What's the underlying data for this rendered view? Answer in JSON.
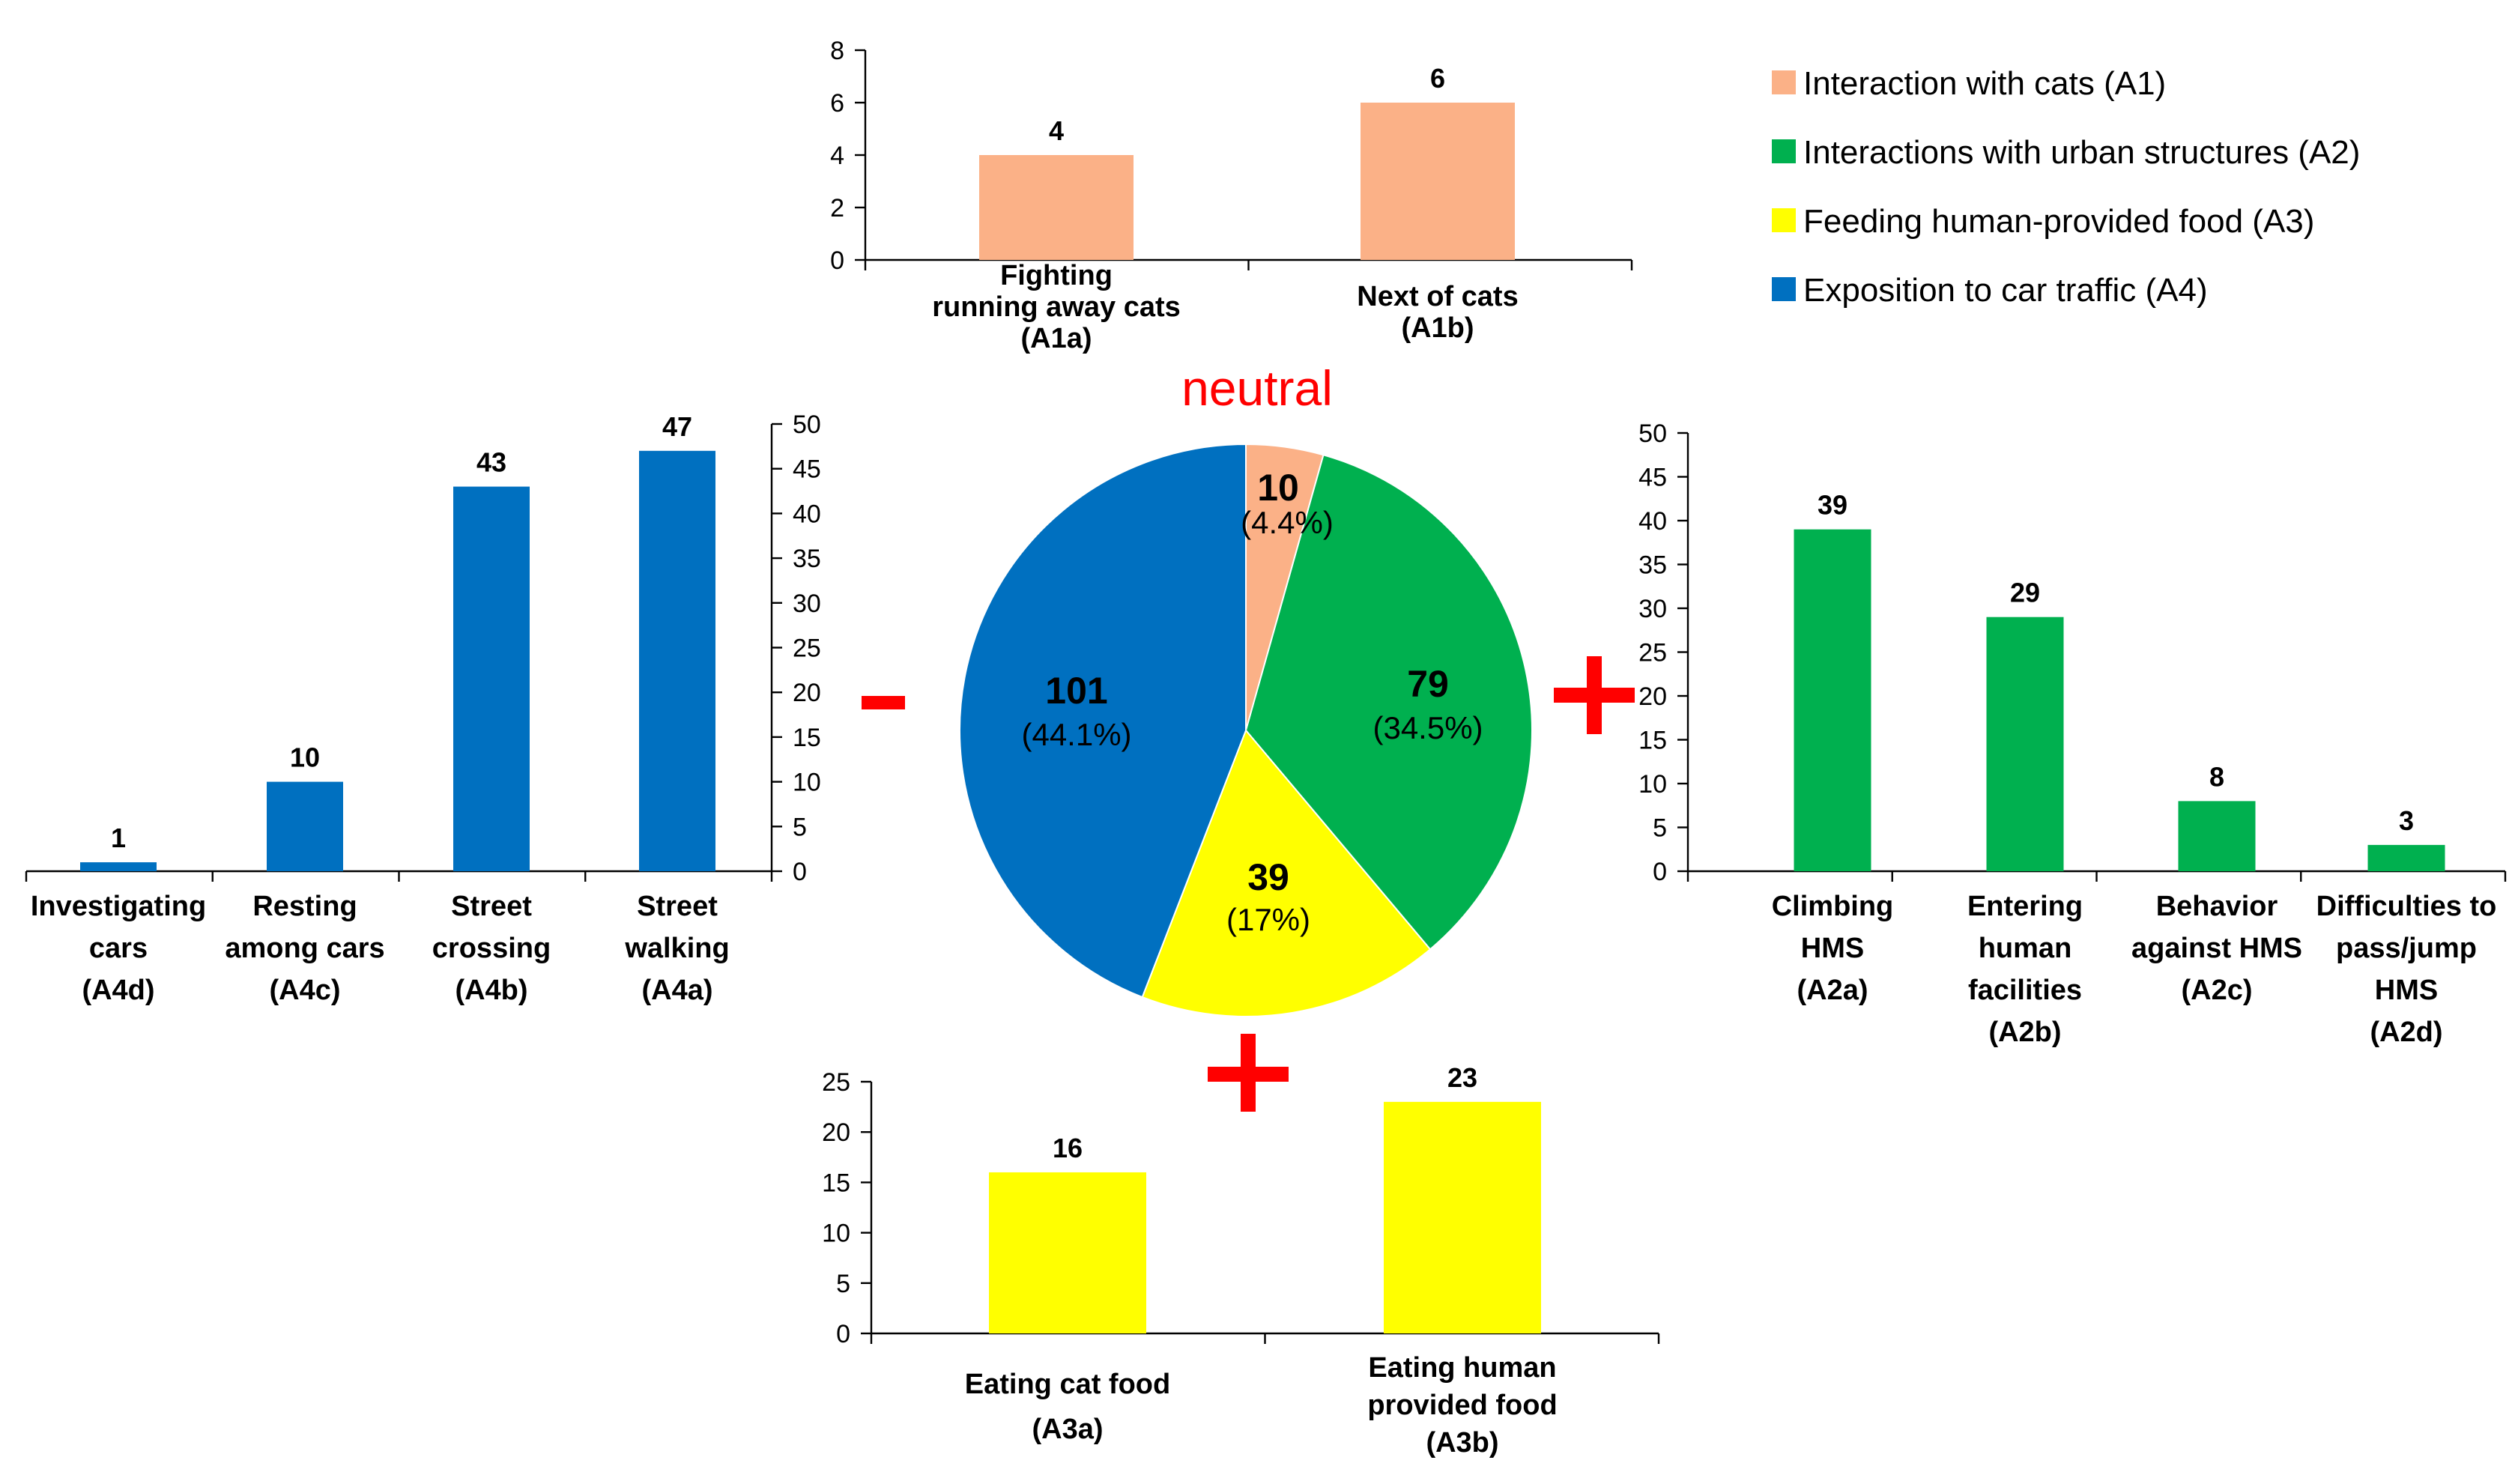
{
  "colors": {
    "A1": "#fbb187",
    "A2": "#00b04f",
    "A3": "#ffff00",
    "A4": "#0070c0",
    "sign": "#ff0000"
  },
  "labels": {
    "neutral": "neutral",
    "minus": "-",
    "plus_right": "+",
    "plus_bottom": "+"
  },
  "chart_data": [
    {
      "id": "pie",
      "type": "pie",
      "slices": [
        {
          "key": "A1",
          "value": 10,
          "label": "10",
          "pct": "(4.4%)"
        },
        {
          "key": "A2",
          "value": 79,
          "label": "79",
          "pct": "(34.5%)"
        },
        {
          "key": "A3",
          "value": 39,
          "label": "39",
          "pct": "(17%)"
        },
        {
          "key": "A4",
          "value": 101,
          "label": "101",
          "pct": "(44.1%)"
        }
      ]
    },
    {
      "id": "A1",
      "type": "bar",
      "color_key": "A1",
      "ylim": [
        0,
        8
      ],
      "yticks": [
        0,
        2,
        4,
        6,
        8
      ],
      "yaxis": "left",
      "categories": [
        [
          "Fighting",
          "running  away cats",
          "(A1a)"
        ],
        [
          "Next of cats",
          "(A1b)"
        ]
      ],
      "values": [
        4,
        6
      ]
    },
    {
      "id": "A4",
      "type": "bar",
      "color_key": "A4",
      "ylim": [
        0,
        50
      ],
      "yticks": [
        0,
        5,
        10,
        15,
        20,
        25,
        30,
        35,
        40,
        45,
        50
      ],
      "yaxis": "right",
      "categories": [
        [
          "Investigating",
          "cars",
          "(A4d)"
        ],
        [
          "Resting",
          "among cars",
          "(A4c)"
        ],
        [
          "Street",
          "crossing",
          "(A4b)"
        ],
        [
          "Street",
          "walking",
          "(A4a)"
        ]
      ],
      "values": [
        1,
        10,
        43,
        47
      ]
    },
    {
      "id": "A2",
      "type": "bar",
      "color_key": "A2",
      "ylim": [
        0,
        50
      ],
      "yticks": [
        0,
        5,
        10,
        15,
        20,
        25,
        30,
        35,
        40,
        45,
        50
      ],
      "yaxis": "left",
      "categories": [
        [
          "Climbing",
          "HMS",
          "(A2a)"
        ],
        [
          "Entering",
          "human",
          "facilities",
          "(A2b)"
        ],
        [
          "Behavior",
          "against HMS",
          "(A2c)"
        ],
        [
          "Difficulties to",
          "pass/jump",
          "HMS",
          "(A2d)"
        ]
      ],
      "values": [
        39,
        29,
        8,
        3
      ]
    },
    {
      "id": "A3",
      "type": "bar",
      "color_key": "A3",
      "ylim": [
        0,
        25
      ],
      "yticks": [
        0,
        5,
        10,
        15,
        20,
        25
      ],
      "yaxis": "left",
      "categories": [
        [
          "Eating cat food",
          "(A3a)"
        ],
        [
          "Eating human",
          "provided food",
          "(A3b)"
        ]
      ],
      "values": [
        16,
        23
      ]
    }
  ],
  "legend": [
    {
      "key": "A1",
      "label": "Interaction with cats (A1)"
    },
    {
      "key": "A2",
      "label": "Interactions with urban structures (A2)"
    },
    {
      "key": "A3",
      "label": "Feeding human-provided food (A3)"
    },
    {
      "key": "A4",
      "label": "Exposition to car traffic (A4)"
    }
  ]
}
